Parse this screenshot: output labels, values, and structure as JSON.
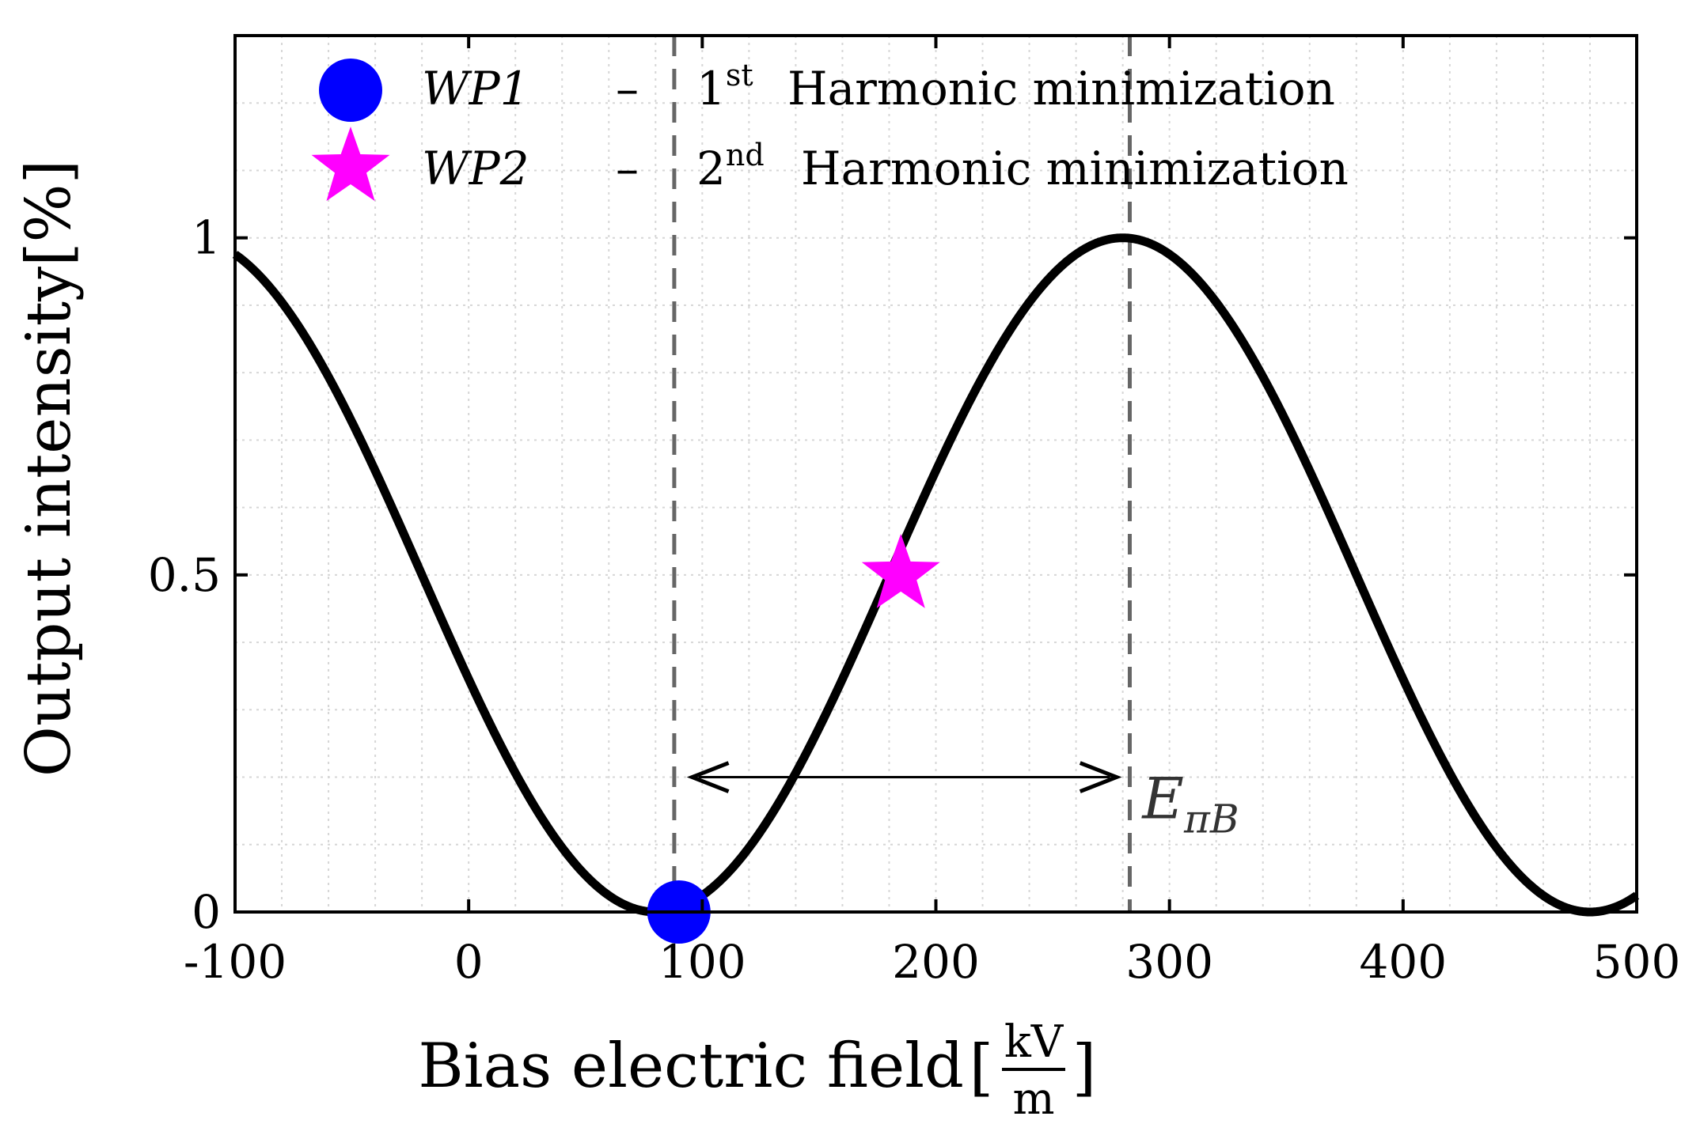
{
  "chart_data": {
    "type": "line",
    "title": "",
    "xlabel": "Bias electric field",
    "xlabel_unit_num": "kV",
    "xlabel_unit_den": "m",
    "xlabel_bracket_open": "[",
    "xlabel_bracket_close": "]",
    "ylabel": "Output intensity[%]",
    "xlim": [
      -100,
      500
    ],
    "ylim": [
      0,
      1.3
    ],
    "xticks": [
      -100,
      0,
      100,
      200,
      300,
      400,
      500
    ],
    "xtick_labels": [
      "-100",
      "0",
      "100",
      "200",
      "300",
      "400",
      "500"
    ],
    "yticks": [
      0,
      0.5,
      1
    ],
    "ytick_labels": [
      "0",
      "0.5",
      "1"
    ],
    "grid": true,
    "series": [
      {
        "name": "Output intensity",
        "color": "#000000",
        "function": "sin^2(pi*(x - 80)/400)",
        "x_range": [
          -100,
          500
        ],
        "phase_zero": 80,
        "period": 400
      }
    ],
    "points": [
      {
        "name": "WP1",
        "x": 90,
        "y": 0.0,
        "marker": "circle",
        "color": "#0000ff"
      },
      {
        "name": "WP2",
        "x": 185,
        "y": 0.5,
        "marker": "star",
        "color": "#ff00ff"
      }
    ],
    "vlines": [
      {
        "x": 88,
        "style": "dashed",
        "color": "#666666"
      },
      {
        "x": 283,
        "style": "dashed",
        "color": "#666666"
      }
    ],
    "arrow": {
      "x_start": 95,
      "x_end": 278,
      "y": 0.2
    },
    "annotation": {
      "text_main": "E",
      "text_sub": "πB",
      "x": 285,
      "y": 0.16
    },
    "legend": {
      "position": "top-left",
      "entries": [
        {
          "marker": "circle",
          "color": "#0000ff",
          "id": "WP1",
          "dash": "–",
          "ordinal": "1",
          "sup": "st",
          "desc": "Harmonic minimization"
        },
        {
          "marker": "star",
          "color": "#ff00ff",
          "id": "WP2",
          "dash": "–",
          "ordinal": "2",
          "sup": "nd",
          "desc": "Harmonic minimization"
        }
      ]
    }
  }
}
